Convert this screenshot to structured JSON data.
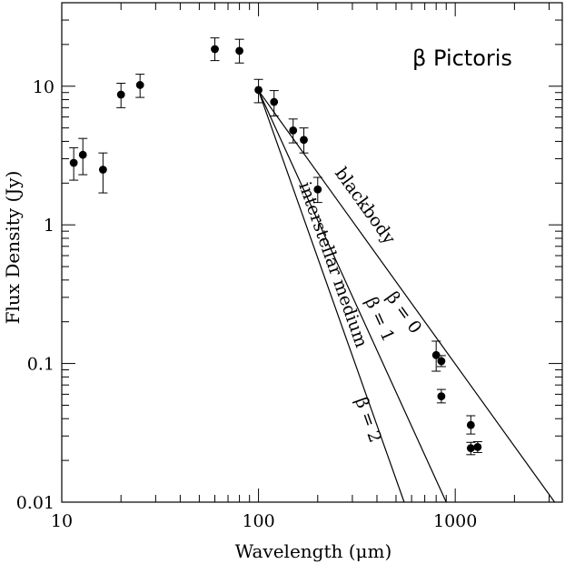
{
  "chart_data": {
    "type": "scatter",
    "title": "β Pictoris",
    "xlabel": "Wavelength (μm)",
    "ylabel": "Flux Density (Jy)",
    "xscale": "log",
    "yscale": "log",
    "xlim": [
      10,
      3500
    ],
    "ylim": [
      0.01,
      40
    ],
    "xticks": [
      {
        "value": 10,
        "label": "10"
      },
      {
        "value": 100,
        "label": "100"
      },
      {
        "value": 1000,
        "label": "1000"
      }
    ],
    "yticks": [
      {
        "value": 0.01,
        "label": "0.01"
      },
      {
        "value": 0.1,
        "label": "0.1"
      },
      {
        "value": 1,
        "label": "1"
      },
      {
        "value": 10,
        "label": "10"
      }
    ],
    "points": [
      {
        "x": 11.5,
        "y": 2.8,
        "lo": 2.1,
        "hi": 3.6
      },
      {
        "x": 12.8,
        "y": 3.2,
        "lo": 2.3,
        "hi": 4.2
      },
      {
        "x": 16.2,
        "y": 2.5,
        "lo": 1.7,
        "hi": 3.3
      },
      {
        "x": 20,
        "y": 8.7,
        "lo": 7.0,
        "hi": 10.5
      },
      {
        "x": 25,
        "y": 10.2,
        "lo": 8.3,
        "hi": 12.2
      },
      {
        "x": 60,
        "y": 18.5,
        "lo": 15.3,
        "hi": 22.3
      },
      {
        "x": 80,
        "y": 18.0,
        "lo": 14.7,
        "hi": 21.8
      },
      {
        "x": 100,
        "y": 9.4,
        "lo": 7.6,
        "hi": 11.2
      },
      {
        "x": 120,
        "y": 7.7,
        "lo": 6.1,
        "hi": 9.3
      },
      {
        "x": 150,
        "y": 4.8,
        "lo": 3.9,
        "hi": 5.8
      },
      {
        "x": 170,
        "y": 4.1,
        "lo": 3.3,
        "hi": 5.0
      },
      {
        "x": 200,
        "y": 1.8,
        "lo": 1.45,
        "hi": 2.2
      },
      {
        "x": 800,
        "y": 0.115,
        "lo": 0.088,
        "hi": 0.145
      },
      {
        "x": 850,
        "y": 0.104,
        "lo": 0.095,
        "hi": 0.114
      },
      {
        "x": 850,
        "y": 0.058,
        "lo": 0.052,
        "hi": 0.065
      },
      {
        "x": 1200,
        "y": 0.036,
        "lo": 0.031,
        "hi": 0.042
      },
      {
        "x": 1200,
        "y": 0.0245,
        "lo": 0.022,
        "hi": 0.027
      },
      {
        "x": 1300,
        "y": 0.025,
        "lo": 0.0228,
        "hi": 0.0273
      }
    ],
    "lines": [
      {
        "x": [
          100,
          3200
        ],
        "y": [
          9.3,
          0.01
        ]
      },
      {
        "x": [
          100,
          900
        ],
        "y": [
          9.3,
          0.01
        ]
      },
      {
        "x": [
          100,
          550
        ],
        "y": [
          9.3,
          0.01
        ]
      }
    ],
    "annotations": [
      {
        "text": "blackbody",
        "x": 330,
        "y": 1.3
      },
      {
        "text": "β = 0",
        "x": 520,
        "y": 0.22
      },
      {
        "text": "β = 1",
        "x": 390,
        "y": 0.2
      },
      {
        "text": "interstellar medium",
        "x": 225,
        "y": 0.5
      },
      {
        "text": "β = 2",
        "x": 340,
        "y": 0.038
      }
    ]
  }
}
